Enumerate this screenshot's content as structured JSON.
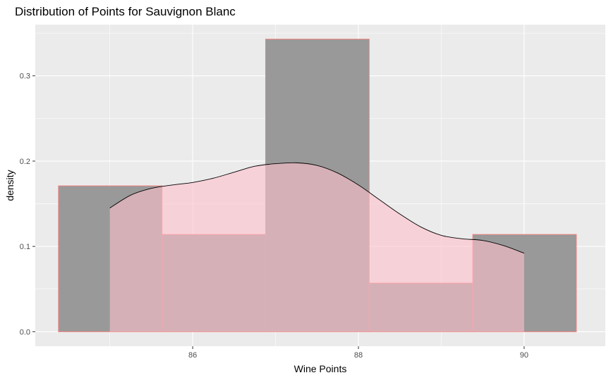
{
  "chart_data": {
    "type": "bar",
    "subtype": "histogram-with-density",
    "title": "Distribution of Points for Sauvignon Blanc",
    "xlabel": "Wine Points",
    "ylabel": "density",
    "xlim": [
      84.1,
      90.98
    ],
    "ylim": [
      -0.017,
      0.36
    ],
    "x_ticks": [
      86,
      88,
      90
    ],
    "x_tick_labels": [
      "86",
      "88",
      "90"
    ],
    "y_ticks": [
      0.0,
      0.1,
      0.2,
      0.3
    ],
    "y_tick_labels": [
      "0.0",
      "0.1",
      "0.2",
      "0.3"
    ],
    "grid": true,
    "bins": [
      {
        "x0": 84.38,
        "x1": 85.63,
        "density": 0.171
      },
      {
        "x0": 85.63,
        "x1": 86.88,
        "density": 0.114
      },
      {
        "x0": 86.88,
        "x1": 88.13,
        "density": 0.343
      },
      {
        "x0": 88.13,
        "x1": 89.38,
        "density": 0.057
      },
      {
        "x0": 89.38,
        "x1": 90.63,
        "density": 0.114
      }
    ],
    "density_curve": {
      "x": [
        85.0,
        85.25,
        85.5,
        85.75,
        86.0,
        86.25,
        86.5,
        86.75,
        87.0,
        87.25,
        87.5,
        87.75,
        88.0,
        88.25,
        88.5,
        88.75,
        89.0,
        89.25,
        89.5,
        89.75,
        90.0
      ],
      "y": [
        0.145,
        0.16,
        0.168,
        0.172,
        0.175,
        0.18,
        0.187,
        0.194,
        0.197,
        0.198,
        0.195,
        0.186,
        0.172,
        0.155,
        0.138,
        0.123,
        0.113,
        0.109,
        0.107,
        0.101,
        0.092
      ]
    },
    "colors": {
      "panel_bg": "#ebebeb",
      "grid_major": "#ffffff",
      "bar_fill": "#999999",
      "bar_outline": "#f08080",
      "density_fill": "#ffc0cb",
      "density_line": "#000000"
    }
  }
}
